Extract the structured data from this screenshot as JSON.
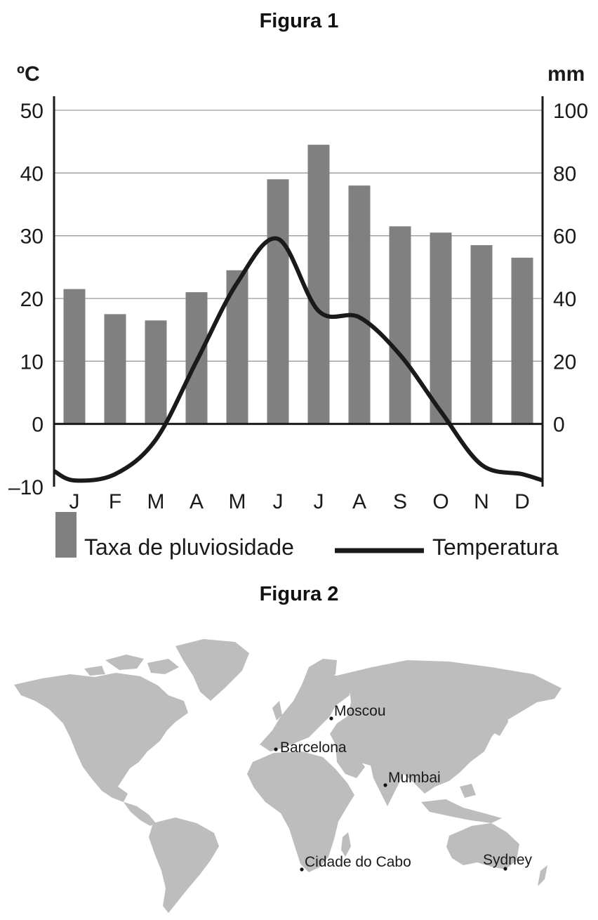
{
  "figure1": {
    "title": "Figura 1"
  },
  "figure2": {
    "title": "Figura 2"
  },
  "chart_data": {
    "type": "bar",
    "categories": [
      "J",
      "F",
      "M",
      "A",
      "M",
      "J",
      "J",
      "A",
      "S",
      "O",
      "N",
      "D"
    ],
    "y_left": {
      "unit": "ºC",
      "ticks": [
        "50",
        "40",
        "30",
        "20",
        "10",
        "0",
        "–10"
      ],
      "range": [
        -10,
        50
      ]
    },
    "y_right": {
      "unit": "mm",
      "ticks": [
        "100",
        "80",
        "60",
        "40",
        "20",
        "0"
      ],
      "range": [
        0,
        100
      ]
    },
    "grid": true,
    "legend_placement": "bottom",
    "series": [
      {
        "name": "Taxa de pluviosidade",
        "kind": "bar",
        "axis": "right",
        "color": "#808080",
        "values": [
          43,
          35,
          33,
          42,
          49,
          78,
          89,
          76,
          63,
          61,
          57,
          53
        ]
      },
      {
        "name": "Temperatura",
        "kind": "line",
        "axis": "left",
        "color": "#1a1a1a",
        "values": [
          -9,
          -8,
          -2.5,
          10,
          22.5,
          29.5,
          18,
          17,
          11,
          2,
          -6.5,
          -8
        ]
      }
    ]
  },
  "map": {
    "land_color": "#bdbdbd",
    "cities": [
      {
        "name": "Moscou"
      },
      {
        "name": "Barcelona"
      },
      {
        "name": "Mumbai"
      },
      {
        "name": "Cidade do Cabo"
      },
      {
        "name": "Sydney"
      }
    ]
  }
}
